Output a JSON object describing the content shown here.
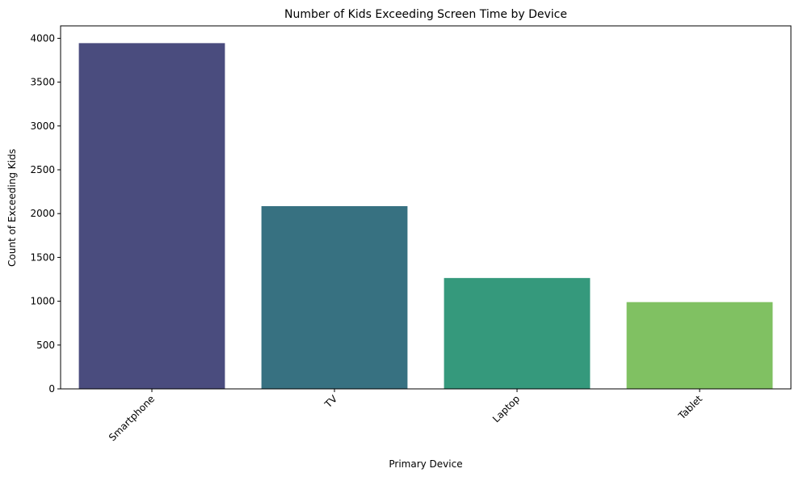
{
  "chart_data": {
    "type": "bar",
    "title": "Number of Kids Exceeding Screen Time by Device",
    "xlabel": "Primary Device",
    "ylabel": "Count of Exceeding Kids",
    "categories": [
      "Smartphone",
      "TV",
      "Laptop",
      "Tablet"
    ],
    "values": [
      3945,
      2085,
      1265,
      990
    ],
    "colors": [
      "#4a4c7e",
      "#377181",
      "#35997c",
      "#80c162"
    ],
    "ylim": [
      0,
      4142
    ],
    "yticks": [
      0,
      500,
      1000,
      1500,
      2000,
      2500,
      3000,
      3500,
      4000
    ],
    "x_tick_rotation": 45,
    "grid": false,
    "legend": "none"
  }
}
